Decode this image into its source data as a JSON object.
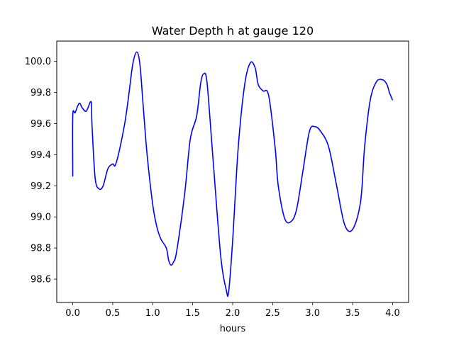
{
  "chart_data": {
    "type": "line",
    "title": "Water Depth h at gauge 120",
    "xlabel": "hours",
    "ylabel": "",
    "xlim": [
      -0.2,
      4.2
    ],
    "ylim": [
      98.45,
      100.13
    ],
    "xticks": [
      0.0,
      0.5,
      1.0,
      1.5,
      2.0,
      2.5,
      3.0,
      3.5,
      4.0
    ],
    "xtick_labels": [
      "0.0",
      "0.5",
      "1.0",
      "1.5",
      "2.0",
      "2.5",
      "3.0",
      "3.5",
      "4.0"
    ],
    "yticks": [
      98.6,
      98.8,
      99.0,
      99.2,
      99.4,
      99.6,
      99.8,
      100.0
    ],
    "ytick_labels": [
      "98.6",
      "98.8",
      "99.0",
      "99.2",
      "99.4",
      "99.6",
      "99.8",
      "100.0"
    ],
    "grid": false,
    "series": [
      {
        "color": "#0000ff",
        "x": [
          0.0,
          0.0,
          0.03,
          0.08,
          0.12,
          0.17,
          0.23,
          0.24,
          0.28,
          0.33,
          0.38,
          0.44,
          0.5,
          0.53,
          0.58,
          0.65,
          0.7,
          0.75,
          0.8,
          0.84,
          0.88,
          0.93,
          1.0,
          1.05,
          1.1,
          1.17,
          1.2,
          1.23,
          1.26,
          1.3,
          1.4,
          1.47,
          1.55,
          1.6,
          1.64,
          1.68,
          1.75,
          1.85,
          1.92,
          1.95,
          2.0,
          2.07,
          2.15,
          2.22,
          2.28,
          2.32,
          2.38,
          2.45,
          2.53,
          2.57,
          2.65,
          2.73,
          2.8,
          2.88,
          2.96,
          3.03,
          3.1,
          3.2,
          3.3,
          3.4,
          3.5,
          3.6,
          3.65,
          3.72,
          3.8,
          3.88,
          3.93,
          3.96,
          4.0
        ],
        "y": [
          99.26,
          99.65,
          99.67,
          99.73,
          99.7,
          99.68,
          99.74,
          99.6,
          99.25,
          99.18,
          99.2,
          99.31,
          99.34,
          99.33,
          99.42,
          99.6,
          99.78,
          99.98,
          100.06,
          99.98,
          99.72,
          99.4,
          99.08,
          98.94,
          98.86,
          98.8,
          98.72,
          98.69,
          98.71,
          98.78,
          99.15,
          99.5,
          99.65,
          99.86,
          99.92,
          99.86,
          99.4,
          98.75,
          98.53,
          98.52,
          98.85,
          99.45,
          99.85,
          99.99,
          99.96,
          99.85,
          99.81,
          99.78,
          99.45,
          99.2,
          98.99,
          98.97,
          99.05,
          99.3,
          99.55,
          99.58,
          99.55,
          99.45,
          99.2,
          98.95,
          98.92,
          99.1,
          99.45,
          99.75,
          99.87,
          99.88,
          99.85,
          99.8,
          99.75
        ]
      }
    ]
  }
}
